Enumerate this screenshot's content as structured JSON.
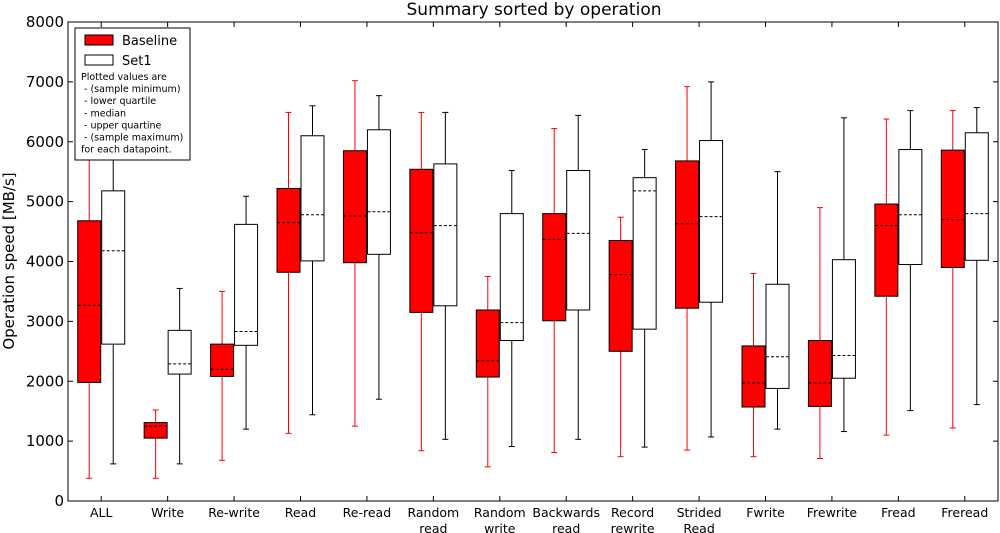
{
  "chart_data": {
    "type": "boxplot",
    "title": "Summary sorted by operation",
    "xlabel": "",
    "ylabel": "Operation speed [MB/s]",
    "ylim": [
      0,
      8000
    ],
    "yticks": [
      0,
      1000,
      2000,
      3000,
      4000,
      5000,
      6000,
      7000,
      8000
    ],
    "grid": false,
    "legend_position": "top-left",
    "categories": [
      [
        "ALL"
      ],
      [
        "Write"
      ],
      [
        "Re-write"
      ],
      [
        "Read"
      ],
      [
        "Re-read"
      ],
      [
        "Random",
        "read"
      ],
      [
        "Random",
        "write"
      ],
      [
        "Backwards",
        "read"
      ],
      [
        "Record",
        "rewrite"
      ],
      [
        "Strided",
        "Read"
      ],
      [
        "Fwrite"
      ],
      [
        "Frewrite"
      ],
      [
        "Fread"
      ],
      [
        "Freread"
      ]
    ],
    "series": [
      {
        "name": "Baseline",
        "fill": "#ff0000",
        "whisker_color": "#ff0000",
        "boxes": [
          {
            "min": 380,
            "q1": 1980,
            "median": 3270,
            "q3": 4680,
            "max": 6500
          },
          {
            "min": 380,
            "q1": 1050,
            "median": 1250,
            "q3": 1310,
            "max": 1520
          },
          {
            "min": 680,
            "q1": 2080,
            "median": 2200,
            "q3": 2620,
            "max": 3500
          },
          {
            "min": 1130,
            "q1": 3820,
            "median": 4650,
            "q3": 5220,
            "max": 6490
          },
          {
            "min": 1250,
            "q1": 3980,
            "median": 4760,
            "q3": 5850,
            "max": 7020
          },
          {
            "min": 840,
            "q1": 3150,
            "median": 4480,
            "q3": 5540,
            "max": 6490
          },
          {
            "min": 570,
            "q1": 2070,
            "median": 2340,
            "q3": 3190,
            "max": 3750
          },
          {
            "min": 810,
            "q1": 3010,
            "median": 4370,
            "q3": 4800,
            "max": 6220
          },
          {
            "min": 740,
            "q1": 2500,
            "median": 3780,
            "q3": 4350,
            "max": 4740
          },
          {
            "min": 850,
            "q1": 3220,
            "median": 4630,
            "q3": 5680,
            "max": 6920
          },
          {
            "min": 740,
            "q1": 1570,
            "median": 1970,
            "q3": 2590,
            "max": 3800
          },
          {
            "min": 710,
            "q1": 1580,
            "median": 1970,
            "q3": 2680,
            "max": 4900
          },
          {
            "min": 1100,
            "q1": 3420,
            "median": 4600,
            "q3": 4960,
            "max": 6380
          },
          {
            "min": 1220,
            "q1": 3900,
            "median": 4700,
            "q3": 5860,
            "max": 6520
          }
        ]
      },
      {
        "name": "Set1",
        "fill": "#ffffff",
        "whisker_color": "#000000",
        "boxes": [
          {
            "min": 620,
            "q1": 2620,
            "median": 4180,
            "q3": 5180,
            "max": 6500
          },
          {
            "min": 620,
            "q1": 2120,
            "median": 2290,
            "q3": 2850,
            "max": 3550
          },
          {
            "min": 1200,
            "q1": 2600,
            "median": 2830,
            "q3": 4620,
            "max": 5090
          },
          {
            "min": 1440,
            "q1": 4010,
            "median": 4780,
            "q3": 6100,
            "max": 6600
          },
          {
            "min": 1700,
            "q1": 4120,
            "median": 4830,
            "q3": 6200,
            "max": 6770
          },
          {
            "min": 1030,
            "q1": 3260,
            "median": 4600,
            "q3": 5630,
            "max": 6490
          },
          {
            "min": 910,
            "q1": 2680,
            "median": 2980,
            "q3": 4800,
            "max": 5520
          },
          {
            "min": 1030,
            "q1": 3190,
            "median": 4470,
            "q3": 5520,
            "max": 6440
          },
          {
            "min": 900,
            "q1": 2870,
            "median": 5180,
            "q3": 5400,
            "max": 5870
          },
          {
            "min": 1070,
            "q1": 3320,
            "median": 4750,
            "q3": 6020,
            "max": 7000
          },
          {
            "min": 1200,
            "q1": 1880,
            "median": 2410,
            "q3": 3620,
            "max": 5500
          },
          {
            "min": 1160,
            "q1": 2050,
            "median": 2430,
            "q3": 4030,
            "max": 6400
          },
          {
            "min": 1510,
            "q1": 3950,
            "median": 4780,
            "q3": 5870,
            "max": 6520
          },
          {
            "min": 1610,
            "q1": 4020,
            "median": 4800,
            "q3": 6150,
            "max": 6570
          }
        ]
      }
    ],
    "annotation": [
      "Plotted values are",
      " - (sample minimum)",
      " - lower quartile",
      " - median",
      " - upper quartine",
      " - (sample maximum)",
      "for each datapoint."
    ]
  }
}
